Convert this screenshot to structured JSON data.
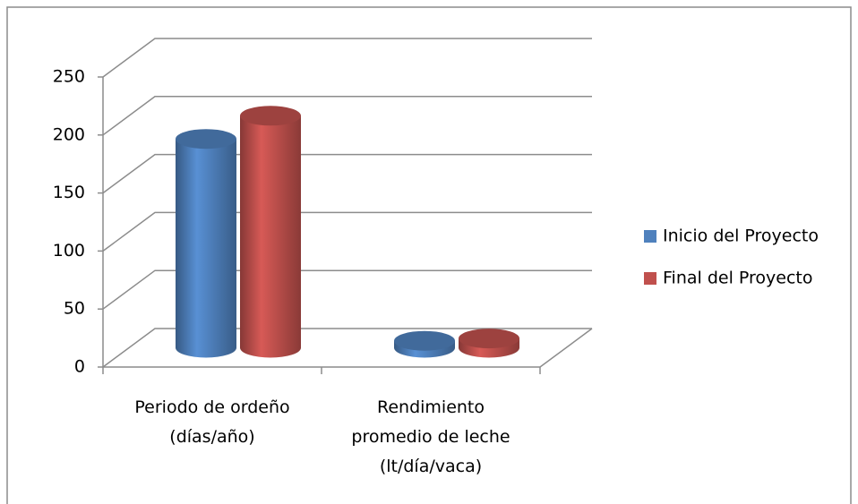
{
  "chart_data": {
    "type": "bar3d",
    "categories": [
      "Periodo de ordeño\n(días/año)",
      "Rendimiento\npromedio de leche\n(lt/día/vaca)"
    ],
    "series": [
      {
        "name": "Inicio del Proyecto",
        "color": "#4f81bd",
        "values": [
          180,
          6
        ]
      },
      {
        "name": "Final del Proyecto",
        "color": "#c0504d",
        "values": [
          200,
          8
        ]
      }
    ],
    "ylim": [
      0,
      250
    ],
    "yticks": [
      0,
      50,
      100,
      150,
      200,
      250
    ],
    "grid": true,
    "legend": "right"
  }
}
